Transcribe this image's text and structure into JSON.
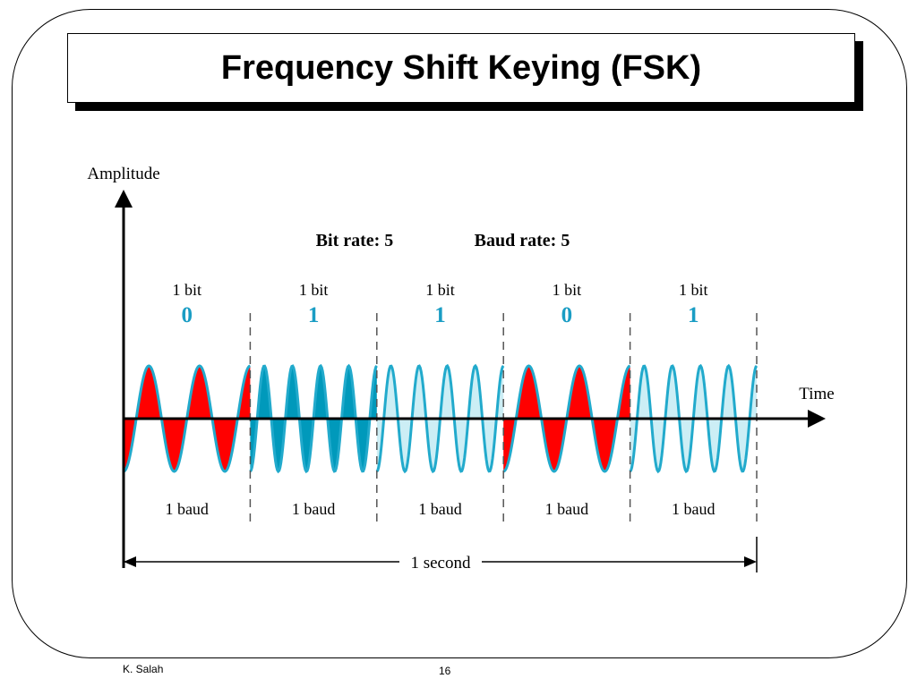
{
  "slide": {
    "title": "Frequency Shift Keying (FSK)",
    "author": "K. Salah",
    "page_number": "16"
  },
  "diagram": {
    "y_axis_label": "Amplitude",
    "x_axis_label": "Time",
    "bit_rate_label": "Bit rate: 5",
    "baud_rate_label": "Baud rate: 5",
    "duration_label": "1 second",
    "colors": {
      "low_freq_fill": "#ff0000",
      "high_freq_solid": "#0099bb",
      "high_freq_light": "#cceef5",
      "wave_stroke": "#22aacc",
      "bit_value_text": "#1a9dc4"
    },
    "segments": [
      {
        "bit_label": "1 bit",
        "bit_value": "0",
        "baud_label": "1 baud",
        "cycles": 2.5,
        "style": "red"
      },
      {
        "bit_label": "1 bit",
        "bit_value": "1",
        "baud_label": "1 baud",
        "cycles": 4.5,
        "style": "solid"
      },
      {
        "bit_label": "1 bit",
        "bit_value": "1",
        "baud_label": "1 baud",
        "cycles": 4.5,
        "style": "light"
      },
      {
        "bit_label": "1 bit",
        "bit_value": "0",
        "baud_label": "1 baud",
        "cycles": 2.5,
        "style": "red"
      },
      {
        "bit_label": "1 bit",
        "bit_value": "1",
        "baud_label": "1 baud",
        "cycles": 4.5,
        "style": "light"
      }
    ]
  }
}
